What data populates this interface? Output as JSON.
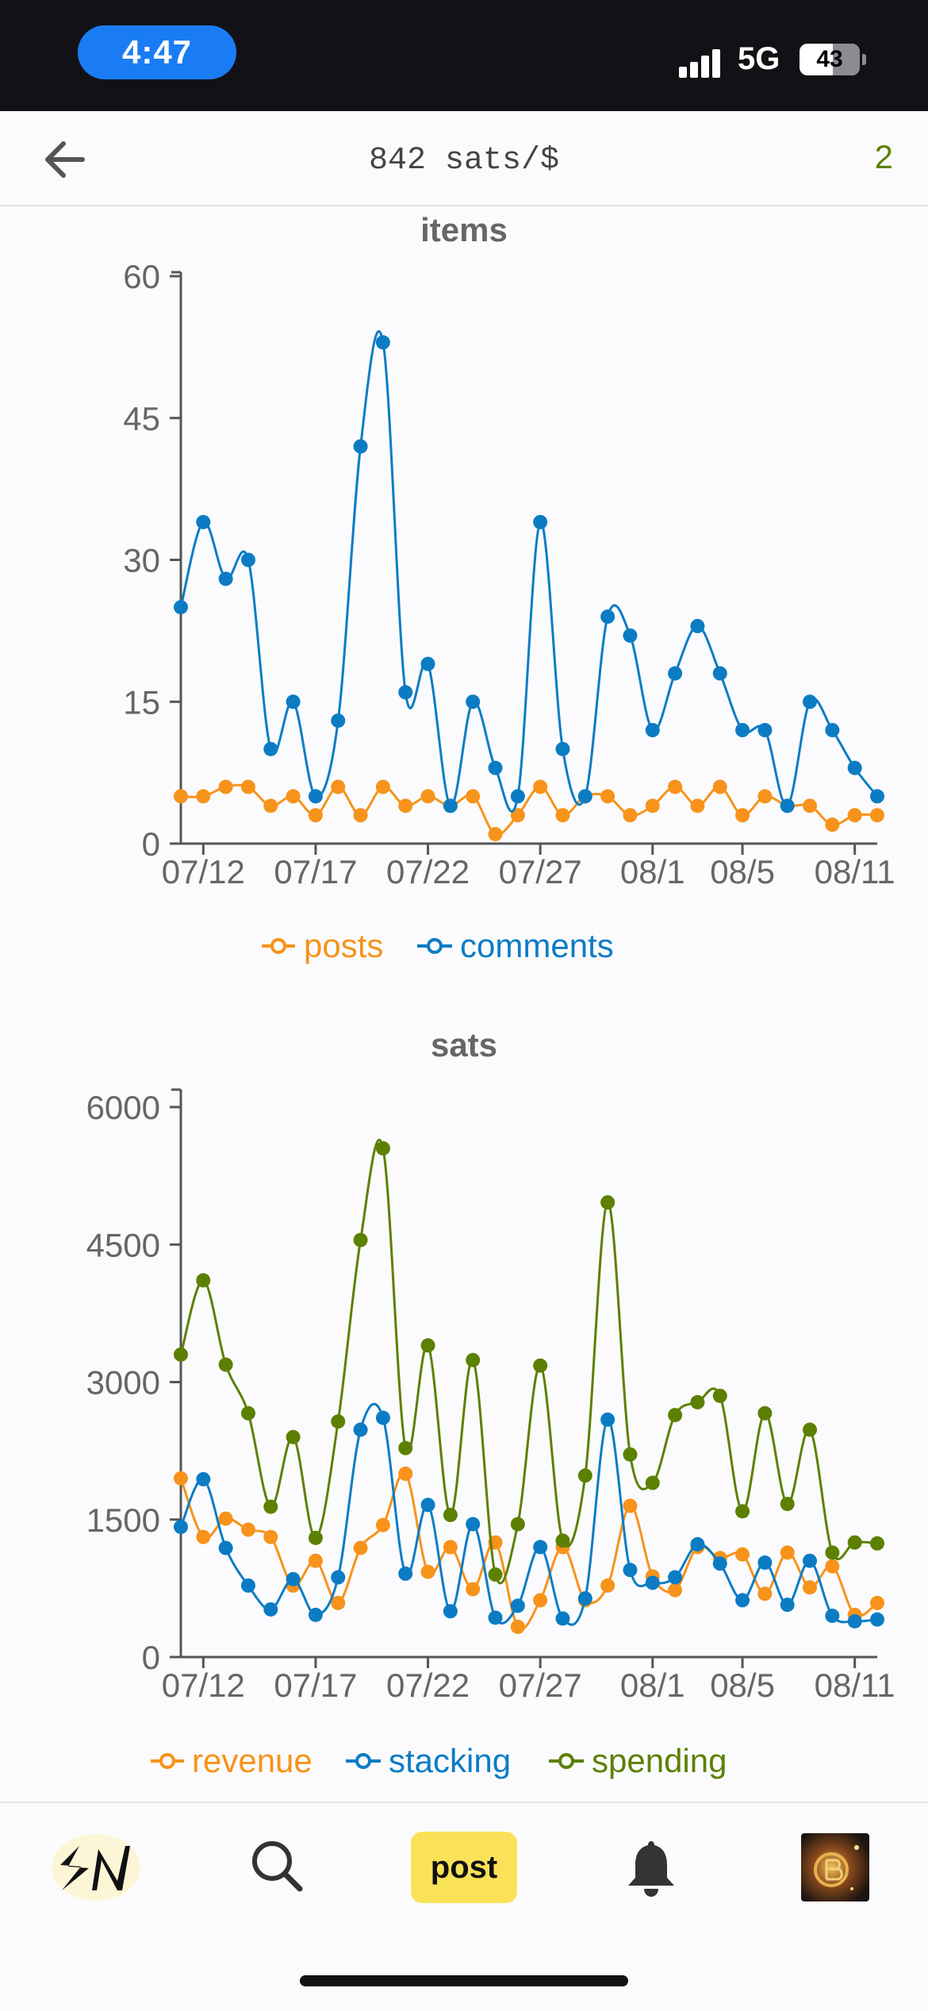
{
  "status_bar": {
    "time": "4:47",
    "network": "5G",
    "battery": "43"
  },
  "header": {
    "price": "842 sats/$",
    "count": "2"
  },
  "charts": {
    "items": {
      "title": "items",
      "legend": [
        {
          "label": "posts",
          "color": "#f7931a"
        },
        {
          "label": "comments",
          "color": "#0b7cc4"
        }
      ]
    },
    "sats": {
      "title": "sats",
      "legend": [
        {
          "label": "revenue",
          "color": "#f7931a"
        },
        {
          "label": "stacking",
          "color": "#0b7cc4"
        },
        {
          "label": "spending",
          "color": "#5c8001"
        }
      ]
    }
  },
  "chart_data": [
    {
      "type": "line",
      "title": "items",
      "x_tick_labels": [
        "07/12",
        "07/17",
        "07/22",
        "07/27",
        "08/1",
        "08/5",
        "08/11"
      ],
      "x_tick_index": [
        1,
        6,
        11,
        16,
        21,
        25,
        30
      ],
      "x_count": 32,
      "ylim": [
        0,
        60
      ],
      "y_ticks": [
        0,
        15,
        30,
        45,
        60
      ],
      "legend_position": "bottom",
      "series": [
        {
          "name": "posts",
          "color": "#f7931a",
          "values": [
            5,
            5,
            6,
            6,
            4,
            5,
            3,
            6,
            3,
            6,
            4,
            5,
            4,
            5,
            1,
            3,
            6,
            3,
            5,
            5,
            3,
            4,
            6,
            4,
            6,
            3,
            5,
            4,
            4,
            2,
            3,
            3
          ]
        },
        {
          "name": "comments",
          "color": "#0b7cc4",
          "values": [
            25,
            34,
            28,
            30,
            10,
            15,
            5,
            13,
            42,
            53,
            16,
            19,
            4,
            15,
            8,
            5,
            34,
            10,
            5,
            24,
            22,
            12,
            18,
            23,
            18,
            12,
            12,
            4,
            15,
            12,
            8,
            5
          ]
        }
      ]
    },
    {
      "type": "line",
      "title": "sats",
      "x_tick_labels": [
        "07/12",
        "07/17",
        "07/22",
        "07/27",
        "08/1",
        "08/5",
        "08/11"
      ],
      "x_tick_index": [
        1,
        6,
        11,
        16,
        21,
        25,
        30
      ],
      "x_count": 32,
      "ylim": [
        0,
        6000
      ],
      "y_ticks": [
        0,
        1500,
        3000,
        4500,
        6000
      ],
      "legend_position": "bottom",
      "series": [
        {
          "name": "revenue",
          "color": "#f7931a",
          "values": [
            1950,
            1310,
            1510,
            1390,
            1310,
            780,
            1050,
            590,
            1190,
            1440,
            2000,
            930,
            1200,
            740,
            1250,
            330,
            620,
            1200,
            620,
            780,
            1650,
            880,
            730,
            1200,
            1080,
            1120,
            690,
            1140,
            760,
            990,
            460,
            590
          ]
        },
        {
          "name": "stacking",
          "color": "#0b7cc4",
          "values": [
            1420,
            1940,
            1190,
            780,
            520,
            850,
            460,
            870,
            2480,
            2610,
            910,
            1660,
            500,
            1450,
            430,
            560,
            1200,
            420,
            640,
            2590,
            950,
            810,
            870,
            1230,
            1020,
            620,
            1030,
            570,
            1050,
            450,
            390,
            410
          ]
        },
        {
          "name": "spending",
          "color": "#5c8001",
          "values": [
            3300,
            4110,
            3190,
            2660,
            1640,
            2400,
            1300,
            2570,
            4550,
            5550,
            2280,
            3400,
            1550,
            3240,
            900,
            1450,
            3180,
            1270,
            1980,
            4960,
            2210,
            1900,
            2640,
            2780,
            2850,
            1590,
            2660,
            1670,
            2480,
            1140,
            1250,
            1240
          ]
        }
      ]
    }
  ]
}
